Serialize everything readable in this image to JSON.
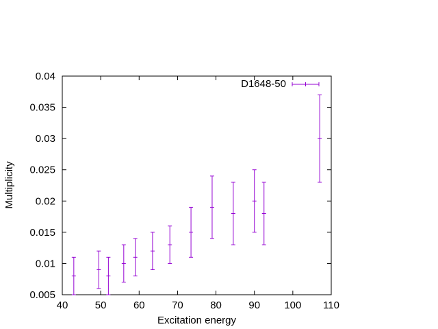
{
  "chart_data": {
    "type": "scatter",
    "title": "",
    "xlabel": "Excitation energy",
    "ylabel": "Multiplicity",
    "xlim": [
      40,
      110
    ],
    "ylim": [
      0.005,
      0.04
    ],
    "x_ticks": [
      "40",
      "50",
      "60",
      "70",
      "80",
      "90",
      "100",
      "110"
    ],
    "y_ticks": [
      "0.005",
      "0.01",
      "0.015",
      "0.02",
      "0.025",
      "0.03",
      "0.035",
      "0.04"
    ],
    "grid": false,
    "legend_position": "top-right",
    "series": [
      {
        "name": "D1648-50",
        "color": "#9400d3",
        "style": "errorbars",
        "points": [
          {
            "x": 43,
            "y": 0.008,
            "ylow": 0.005,
            "yhigh": 0.011
          },
          {
            "x": 49.5,
            "y": 0.009,
            "ylow": 0.006,
            "yhigh": 0.012
          },
          {
            "x": 52,
            "y": 0.008,
            "ylow": 0.005,
            "yhigh": 0.011
          },
          {
            "x": 56,
            "y": 0.01,
            "ylow": 0.007,
            "yhigh": 0.013
          },
          {
            "x": 59,
            "y": 0.011,
            "ylow": 0.008,
            "yhigh": 0.014
          },
          {
            "x": 63.5,
            "y": 0.012,
            "ylow": 0.009,
            "yhigh": 0.015
          },
          {
            "x": 68,
            "y": 0.013,
            "ylow": 0.01,
            "yhigh": 0.016
          },
          {
            "x": 73.5,
            "y": 0.015,
            "ylow": 0.011,
            "yhigh": 0.019
          },
          {
            "x": 79,
            "y": 0.019,
            "ylow": 0.014,
            "yhigh": 0.024
          },
          {
            "x": 84.5,
            "y": 0.018,
            "ylow": 0.013,
            "yhigh": 0.023
          },
          {
            "x": 90,
            "y": 0.02,
            "ylow": 0.015,
            "yhigh": 0.025
          },
          {
            "x": 92.5,
            "y": 0.018,
            "ylow": 0.013,
            "yhigh": 0.023
          },
          {
            "x": 107,
            "y": 0.03,
            "ylow": 0.023,
            "yhigh": 0.037
          }
        ]
      }
    ]
  }
}
